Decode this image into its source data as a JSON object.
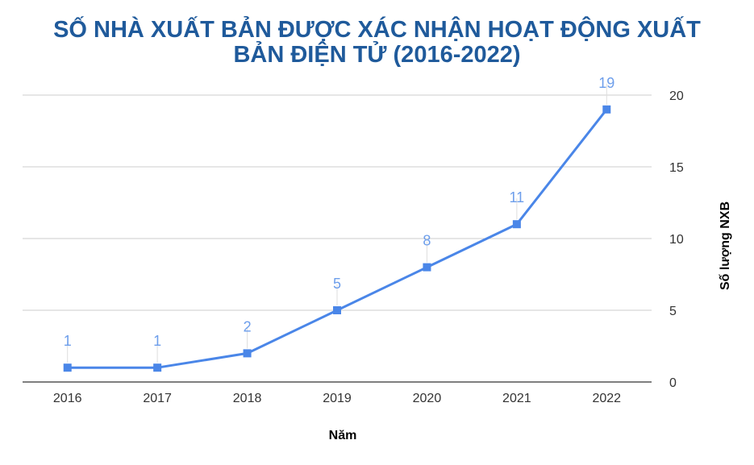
{
  "chart_data": {
    "type": "line",
    "title_lines": [
      "SỐ NHÀ XUẤT BẢN ĐƯỢC XÁC NHẬN HOẠT ĐỘNG XUẤT",
      "BẢN ĐIỆN TỬ (2016-2022)"
    ],
    "xlabel": "Năm",
    "ylabel": "Số lượng NXB",
    "categories": [
      "2016",
      "2017",
      "2018",
      "2019",
      "2020",
      "2021",
      "2022"
    ],
    "series": [
      {
        "values": [
          1,
          1,
          2,
          5,
          8,
          11,
          19
        ]
      }
    ],
    "ylim": [
      0,
      20
    ],
    "yticks": [
      "0",
      "5",
      "10",
      "15",
      "20"
    ],
    "y_axis_position": "right",
    "data_labels": true,
    "grid": true,
    "legend": "none",
    "colors": {
      "line": "#4a86e8",
      "data_label": "#6d9eeb",
      "title": "#1f5a9b",
      "grid": "#cccccc"
    }
  }
}
